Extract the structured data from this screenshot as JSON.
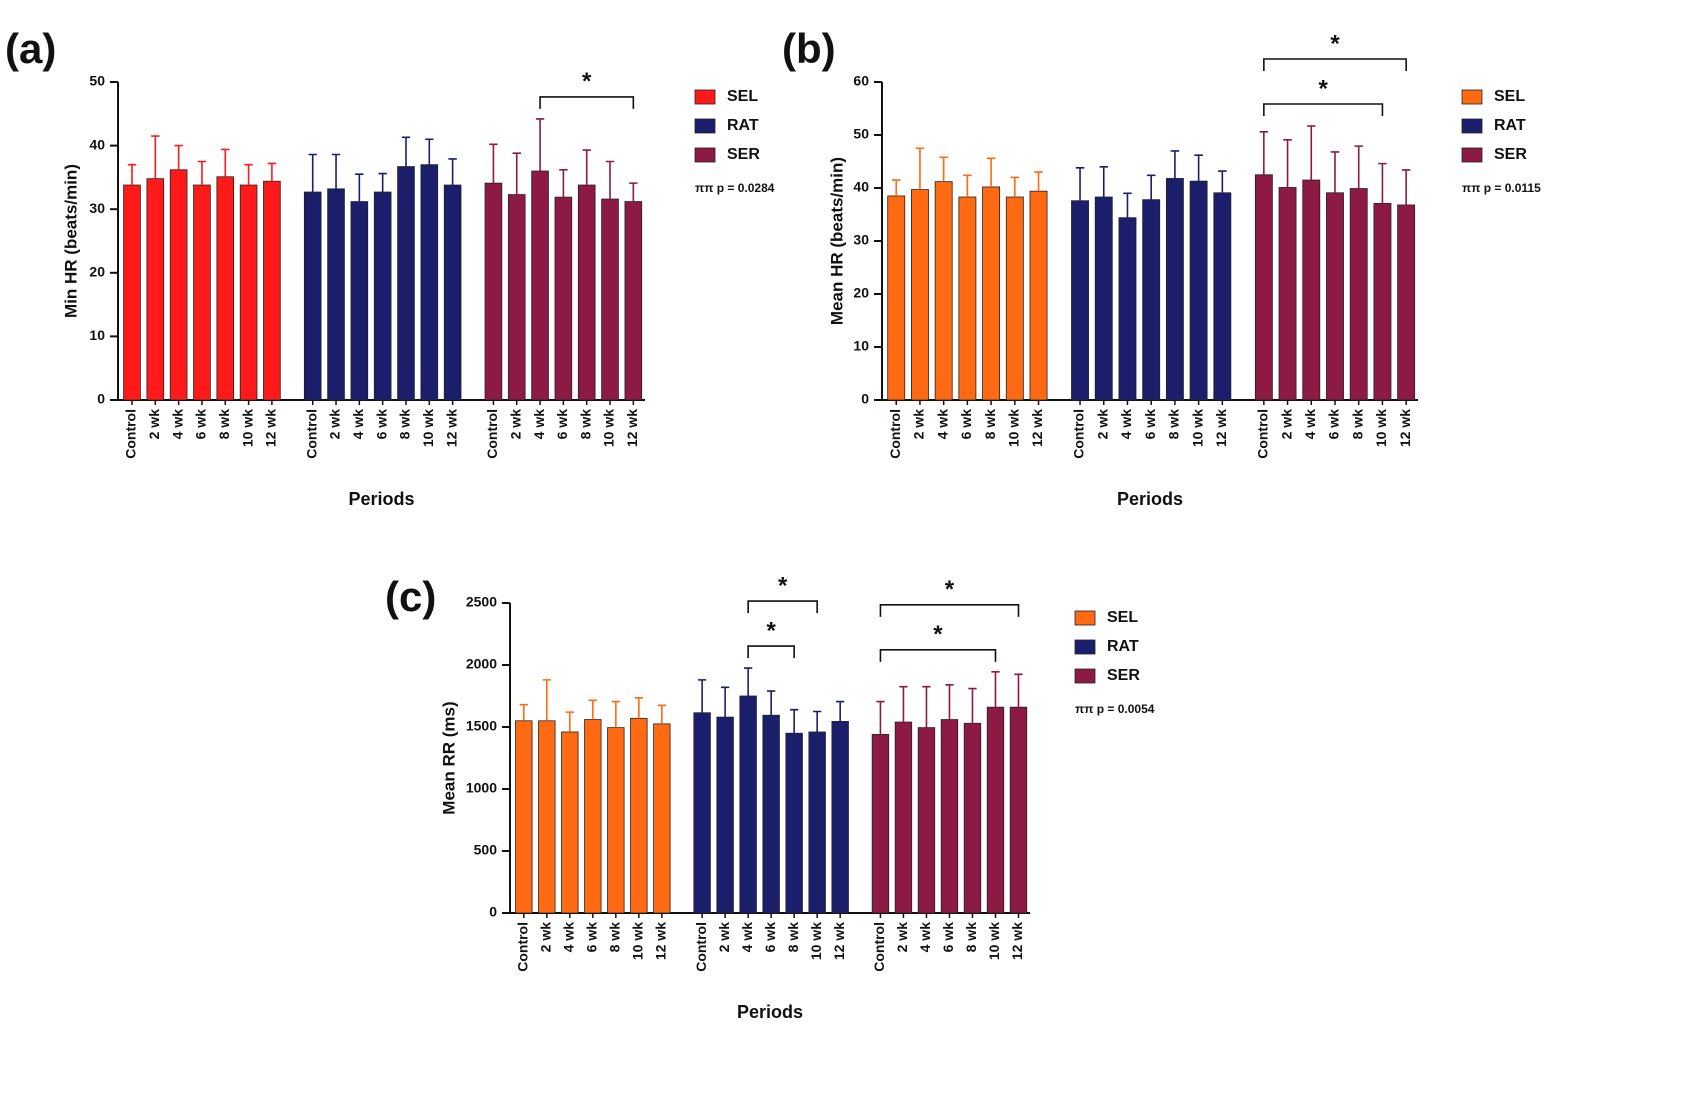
{
  "chart_data": [
    {
      "type": "bar",
      "panel_label": "(a)",
      "ylabel": "Min HR (beats/min)",
      "xlabel": "Periods",
      "categories": [
        "Control",
        "2 wk",
        "4 wk",
        "6 wk",
        "8 wk",
        "10 wk",
        "12 wk"
      ],
      "series": [
        {
          "name": "SEL",
          "color": "#ff1a1a",
          "values": [
            33.8,
            34.8,
            36.2,
            33.8,
            35.1,
            33.8,
            34.4
          ],
          "errors": [
            3.2,
            6.7,
            3.8,
            3.7,
            4.3,
            3.2,
            2.8
          ]
        },
        {
          "name": "RAT",
          "color": "#1b1f6b",
          "values": [
            32.7,
            33.2,
            31.2,
            32.7,
            36.7,
            37.0,
            33.8
          ],
          "errors": [
            5.9,
            5.4,
            4.3,
            2.9,
            4.6,
            4.0,
            4.1
          ]
        },
        {
          "name": "SER",
          "color": "#8c1a45",
          "values": [
            34.1,
            32.3,
            36.0,
            31.9,
            33.8,
            31.6,
            31.2
          ],
          "errors": [
            6.1,
            6.5,
            8.2,
            4.3,
            5.5,
            5.9,
            2.9
          ]
        }
      ],
      "ylim": [
        0,
        50
      ],
      "yticks": [
        0,
        10,
        20,
        30,
        40,
        50
      ],
      "brackets": [
        {
          "group": "SER",
          "from": "4 wk",
          "to": "12 wk",
          "label": "*"
        }
      ],
      "annotation": "ππ p = 0.0284"
    },
    {
      "type": "bar",
      "panel_label": "(b)",
      "ylabel": "Mean HR (beats/min)",
      "xlabel": "Periods",
      "categories": [
        "Control",
        "2 wk",
        "4 wk",
        "6 wk",
        "8 wk",
        "10 wk",
        "12 wk"
      ],
      "series": [
        {
          "name": "SEL",
          "color": "#ff6a13",
          "values": [
            38.5,
            39.7,
            41.2,
            38.3,
            40.2,
            38.3,
            39.4
          ],
          "errors": [
            3.0,
            7.8,
            4.6,
            4.1,
            5.4,
            3.7,
            3.6
          ]
        },
        {
          "name": "RAT",
          "color": "#1b1f6b",
          "values": [
            37.6,
            38.3,
            34.4,
            37.8,
            41.8,
            41.3,
            39.1
          ],
          "errors": [
            6.2,
            5.7,
            4.6,
            4.6,
            5.2,
            4.9,
            4.1
          ]
        },
        {
          "name": "SER",
          "color": "#8c1a45",
          "values": [
            42.5,
            40.1,
            41.5,
            39.1,
            39.9,
            37.1,
            36.8
          ],
          "errors": [
            8.1,
            9.0,
            10.2,
            7.7,
            8.0,
            7.5,
            6.6
          ]
        }
      ],
      "ylim": [
        0,
        60
      ],
      "yticks": [
        0,
        10,
        20,
        30,
        40,
        50,
        60
      ],
      "brackets": [
        {
          "group": "SER",
          "from": "Control",
          "to": "10 wk",
          "label": "*"
        },
        {
          "group": "SER",
          "from": "Control",
          "to": "12 wk",
          "label": "*"
        }
      ],
      "annotation": "ππ p = 0.0115"
    },
    {
      "type": "bar",
      "panel_label": "(c)",
      "ylabel": "Mean RR (ms)",
      "xlabel": "Periods",
      "categories": [
        "Control",
        "2 wk",
        "4 wk",
        "6 wk",
        "8 wk",
        "10 wk",
        "12 wk"
      ],
      "series": [
        {
          "name": "SEL",
          "color": "#ff6a13",
          "values": [
            1550,
            1550,
            1460,
            1560,
            1495,
            1570,
            1525
          ],
          "errors": [
            130,
            330,
            160,
            155,
            210,
            165,
            150
          ]
        },
        {
          "name": "RAT",
          "color": "#1b1f6b",
          "values": [
            1615,
            1580,
            1750,
            1595,
            1450,
            1460,
            1545
          ],
          "errors": [
            265,
            240,
            225,
            195,
            190,
            165,
            160
          ]
        },
        {
          "name": "SER",
          "color": "#8c1a45",
          "values": [
            1440,
            1540,
            1495,
            1560,
            1530,
            1660,
            1660
          ],
          "errors": [
            265,
            285,
            330,
            280,
            280,
            285,
            265
          ]
        }
      ],
      "ylim": [
        0,
        2500
      ],
      "yticks": [
        0,
        500,
        1000,
        1500,
        2000,
        2500
      ],
      "brackets": [
        {
          "group": "RAT",
          "from": "4 wk",
          "to": "8 wk",
          "label": "*"
        },
        {
          "group": "RAT",
          "from": "4 wk",
          "to": "10 wk",
          "label": "*"
        },
        {
          "group": "SER",
          "from": "Control",
          "to": "10 wk",
          "label": "*"
        },
        {
          "group": "SER",
          "from": "Control",
          "to": "12 wk",
          "label": "*"
        }
      ],
      "annotation": "ππ p = 0.0054"
    }
  ]
}
